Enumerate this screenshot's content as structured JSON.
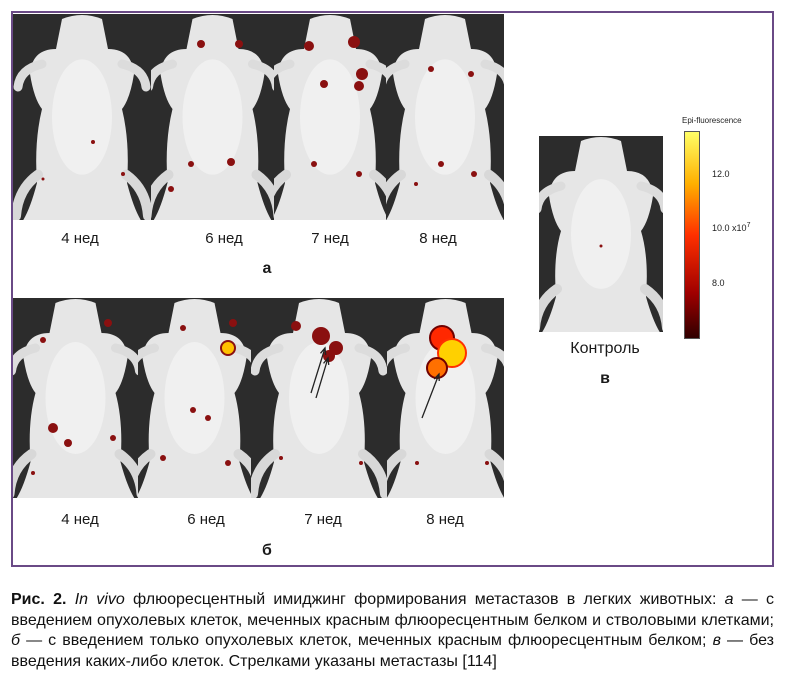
{
  "panel_a": {
    "weeks": [
      "4 нед",
      "6 нед",
      "7 нед",
      "8 нед"
    ],
    "letter": "а"
  },
  "panel_b": {
    "weeks": [
      "4 нед",
      "6 нед",
      "7 нед",
      "8 нед"
    ],
    "letter": "б"
  },
  "panel_c": {
    "label": "Контроль",
    "letter": "в"
  },
  "scale": {
    "title": "Epi-fluorescence",
    "ticks": [
      "12.0",
      "10.0",
      "8.0"
    ],
    "unit": "x10",
    "exponent": "7",
    "colors": [
      "#ffff66",
      "#ffb000",
      "#ff3000",
      "#a00000",
      "#300000"
    ]
  },
  "caption": {
    "fig": "Рис. 2.",
    "invivo": "In vivo",
    "text1": " флюоресцентный имиджинг формирования метастазов в легких животных: ",
    "a": "а",
    "text2": " — с введением опухолевых клеток, меченных красным флюоресцентным белком и стволовыми клетками; ",
    "b": "б",
    "text3": " — с введением только опухолевых клеток, меченных красным флюоресцентным белком; ",
    "c": "в",
    "text4": " — без введения каких-либо клеток. Стрелками указаны метастазы [114]"
  }
}
